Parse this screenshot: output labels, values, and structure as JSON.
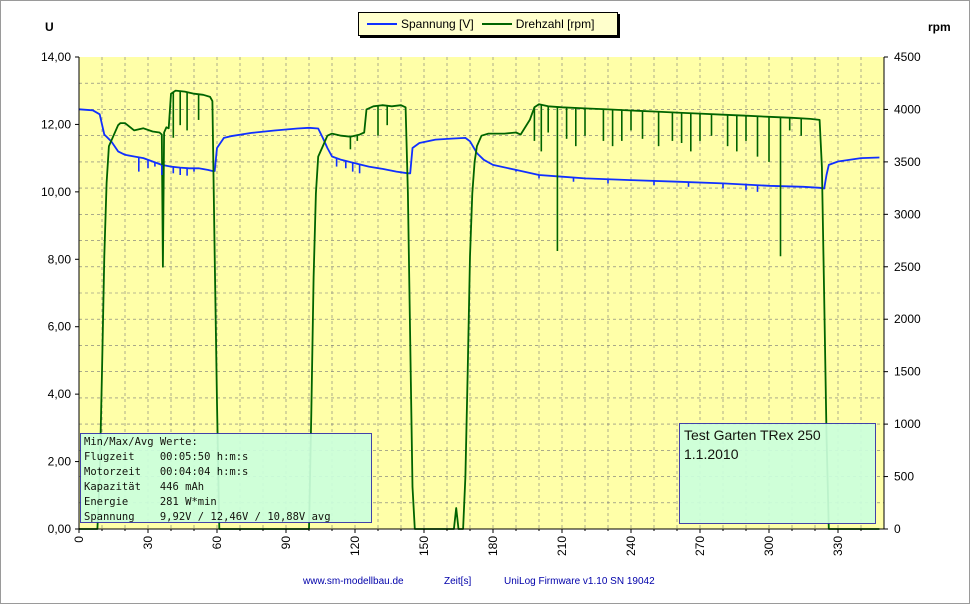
{
  "left_axis_title": "U",
  "right_axis_title": "rpm",
  "legend": [
    {
      "label": "Spannung [V]",
      "color": "#1030ff"
    },
    {
      "label": "Drehzahl [rpm]",
      "color": "#006400"
    }
  ],
  "info_box": {
    "lines": [
      "Min/Max/Avg Werte:",
      "Flugzeit    00:05:50 h:m:s",
      "Motorzeit   00:04:04 h:m:s",
      "Kapazität   446 mAh",
      "Energie     281 W*min",
      "Spannung    9,92V / 12,46V / 10,88V avg"
    ]
  },
  "note_box": {
    "line1": "Test Garten TRex 250",
    "line2": "1.1.2010"
  },
  "footer": {
    "website": "www.sm-modellbau.de",
    "xlabel": "Zeit[s]",
    "firmware": "UniLog Firmware v1.10 SN 19042"
  },
  "chart_data": {
    "type": "line",
    "x_ticks": [
      "0",
      "30",
      "60",
      "90",
      "120",
      "150",
      "180",
      "210",
      "240",
      "270",
      "300",
      "330"
    ],
    "y_left_ticks": [
      "0,00",
      "2,00",
      "4,00",
      "6,00",
      "8,00",
      "10,00",
      "12,00",
      "14,00"
    ],
    "y_right_ticks": [
      "0",
      "500",
      "1000",
      "1500",
      "2000",
      "2500",
      "3000",
      "3500",
      "4000",
      "4500"
    ],
    "xlim": [
      0,
      350
    ],
    "ylim_left": [
      0,
      14
    ],
    "ylim_right": [
      0,
      4500
    ],
    "grid": true,
    "plot_background": "#ffffa8",
    "series": [
      {
        "name": "Spannung [V]",
        "axis": "left",
        "color": "#1030ff",
        "points": [
          [
            0,
            12.45
          ],
          [
            6,
            12.42
          ],
          [
            9,
            12.3
          ],
          [
            10,
            12.0
          ],
          [
            11,
            11.7
          ],
          [
            14,
            11.5
          ],
          [
            17,
            11.2
          ],
          [
            20,
            11.1
          ],
          [
            24,
            11.05
          ],
          [
            28,
            11.0
          ],
          [
            32,
            10.9
          ],
          [
            36,
            10.8
          ],
          [
            40,
            10.75
          ],
          [
            44,
            10.72
          ],
          [
            48,
            10.7
          ],
          [
            52,
            10.7
          ],
          [
            56,
            10.65
          ],
          [
            58,
            10.62
          ],
          [
            59,
            10.62
          ],
          [
            60,
            11.3
          ],
          [
            63,
            11.6
          ],
          [
            66,
            11.65
          ],
          [
            75,
            11.75
          ],
          [
            85,
            11.82
          ],
          [
            95,
            11.88
          ],
          [
            100,
            11.9
          ],
          [
            104,
            11.88
          ],
          [
            106,
            11.6
          ],
          [
            108,
            11.3
          ],
          [
            110,
            11.05
          ],
          [
            114,
            10.95
          ],
          [
            120,
            10.85
          ],
          [
            126,
            10.75
          ],
          [
            132,
            10.68
          ],
          [
            138,
            10.6
          ],
          [
            143,
            10.55
          ],
          [
            144,
            10.55
          ],
          [
            145,
            11.3
          ],
          [
            148,
            11.45
          ],
          [
            155,
            11.55
          ],
          [
            162,
            11.58
          ],
          [
            168,
            11.6
          ],
          [
            170,
            11.5
          ],
          [
            173,
            11.15
          ],
          [
            176,
            10.95
          ],
          [
            180,
            10.8
          ],
          [
            190,
            10.65
          ],
          [
            200,
            10.5
          ],
          [
            210,
            10.45
          ],
          [
            220,
            10.4
          ],
          [
            240,
            10.35
          ],
          [
            260,
            10.3
          ],
          [
            280,
            10.25
          ],
          [
            300,
            10.18
          ],
          [
            315,
            10.15
          ],
          [
            322,
            10.12
          ],
          [
            324,
            10.1
          ],
          [
            325,
            10.5
          ],
          [
            326,
            10.8
          ],
          [
            330,
            10.9
          ],
          [
            340,
            11.0
          ],
          [
            348,
            11.02
          ]
        ]
      },
      {
        "name": "Drehzahl [rpm]",
        "axis": "right",
        "color": "#006400",
        "points": [
          [
            0,
            0
          ],
          [
            8,
            0
          ],
          [
            9,
            500
          ],
          [
            10,
            1500
          ],
          [
            11,
            2600
          ],
          [
            12,
            3300
          ],
          [
            13,
            3650
          ],
          [
            15,
            3750
          ],
          [
            17,
            3850
          ],
          [
            18,
            3870
          ],
          [
            20,
            3870
          ],
          [
            24,
            3800
          ],
          [
            28,
            3820
          ],
          [
            32,
            3790
          ],
          [
            35,
            3780
          ],
          [
            36,
            3760
          ],
          [
            36.5,
            2500
          ],
          [
            37,
            3780
          ],
          [
            38,
            3830
          ],
          [
            39,
            3820
          ],
          [
            40,
            4150
          ],
          [
            42,
            4180
          ],
          [
            46,
            4170
          ],
          [
            50,
            4150
          ],
          [
            54,
            4140
          ],
          [
            57,
            4120
          ],
          [
            58,
            4080
          ],
          [
            59,
            2600
          ],
          [
            60,
            1200
          ],
          [
            61,
            0
          ],
          [
            100,
            0
          ],
          [
            101,
            1100
          ],
          [
            102,
            2400
          ],
          [
            103,
            3200
          ],
          [
            104,
            3550
          ],
          [
            106,
            3650
          ],
          [
            108,
            3750
          ],
          [
            110,
            3770
          ],
          [
            114,
            3750
          ],
          [
            118,
            3740
          ],
          [
            122,
            3760
          ],
          [
            124,
            3780
          ],
          [
            125,
            4000
          ],
          [
            128,
            4030
          ],
          [
            132,
            4040
          ],
          [
            136,
            4030
          ],
          [
            140,
            4040
          ],
          [
            142,
            4020
          ],
          [
            143,
            3200
          ],
          [
            144,
            1800
          ],
          [
            145,
            400
          ],
          [
            146,
            0
          ],
          [
            163,
            0
          ],
          [
            164,
            200
          ],
          [
            165,
            0
          ],
          [
            167,
            0
          ],
          [
            168,
            500
          ],
          [
            169,
            1500
          ],
          [
            170,
            2600
          ],
          [
            171,
            3200
          ],
          [
            172,
            3500
          ],
          [
            173,
            3650
          ],
          [
            175,
            3750
          ],
          [
            178,
            3770
          ],
          [
            185,
            3770
          ],
          [
            190,
            3780
          ],
          [
            192,
            3760
          ],
          [
            196,
            3900
          ],
          [
            198,
            4020
          ],
          [
            200,
            4050
          ],
          [
            204,
            4030
          ],
          [
            210,
            4020
          ],
          [
            220,
            4010
          ],
          [
            230,
            4000
          ],
          [
            240,
            3990
          ],
          [
            250,
            3980
          ],
          [
            260,
            3970
          ],
          [
            270,
            3960
          ],
          [
            280,
            3950
          ],
          [
            290,
            3940
          ],
          [
            300,
            3930
          ],
          [
            310,
            3920
          ],
          [
            318,
            3910
          ],
          [
            322,
            3900
          ],
          [
            323,
            3450
          ],
          [
            324,
            2200
          ],
          [
            325,
            900
          ],
          [
            326,
            0
          ],
          [
            330,
            0
          ],
          [
            348,
            0
          ]
        ]
      }
    ],
    "dips": [
      {
        "series": "Spannung [V]",
        "x": [
          26,
          30,
          33,
          36,
          41,
          44,
          47,
          50,
          112,
          116,
          119,
          122,
          190,
          200,
          215,
          230,
          250,
          265,
          280,
          290,
          295
        ],
        "y": [
          10.6,
          10.7,
          10.75,
          10.5,
          10.55,
          10.5,
          10.48,
          10.6,
          10.75,
          10.7,
          10.6,
          10.55,
          10.6,
          10.4,
          10.3,
          10.25,
          10.2,
          10.15,
          10.1,
          10.05,
          10.0
        ]
      },
      {
        "series": "Drehzahl [rpm]",
        "x": [
          41,
          44,
          47,
          52,
          118,
          121,
          130,
          134,
          198,
          201,
          204,
          208,
          212,
          216,
          220,
          228,
          232,
          236,
          240,
          245,
          252,
          258,
          262,
          266,
          270,
          275,
          282,
          286,
          290,
          295,
          300,
          305,
          309,
          314
        ],
        "y": [
          3730,
          3850,
          3800,
          3900,
          3620,
          3700,
          3750,
          3850,
          3700,
          3600,
          3780,
          2650,
          3720,
          3650,
          3750,
          3700,
          3650,
          3700,
          3800,
          3720,
          3650,
          3700,
          3680,
          3600,
          3700,
          3750,
          3650,
          3600,
          3700,
          3550,
          3500,
          2600,
          3800,
          3750
        ]
      }
    ]
  }
}
